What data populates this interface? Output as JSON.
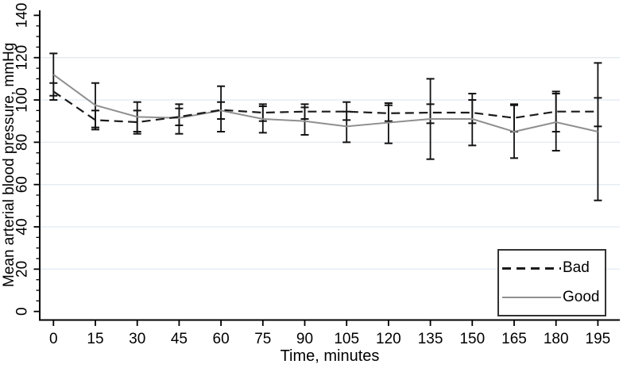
{
  "chart_data": {
    "type": "line",
    "title": "",
    "xlabel": "Time, minutes",
    "ylabel": "Mean arterial blood pressure, mmHg",
    "x": [
      0,
      15,
      30,
      45,
      60,
      75,
      90,
      105,
      120,
      135,
      150,
      165,
      180,
      195
    ],
    "ylim": [
      0,
      140
    ],
    "yticks": [
      0,
      20,
      40,
      60,
      80,
      100,
      120,
      140
    ],
    "y_minor_tick_step": 5,
    "gridline_values": [
      20,
      40,
      60,
      80,
      100,
      120
    ],
    "grid": "horizontal-light",
    "legend_position": "bottom-right",
    "error_bars": true,
    "series": [
      {
        "name": "Bad",
        "line_style": "dashed",
        "color": "#1a1a1a",
        "values": [
          104,
          90.5,
          89.5,
          92,
          95.3,
          94,
          94.5,
          94.5,
          93.7,
          94,
          94,
          91.5,
          94.5,
          94.5
        ],
        "err_low": [
          100,
          86,
          84,
          88,
          91,
          90,
          91,
          90.5,
          90,
          89,
          89,
          85,
          85,
          87.5
        ],
        "err_high": [
          108,
          95,
          95,
          96,
          99,
          98,
          98,
          99,
          97.5,
          98,
          100,
          98,
          104,
          101
        ]
      },
      {
        "name": "Good",
        "line_style": "solid",
        "color": "#8f8f8f",
        "values": [
          112,
          97.5,
          92,
          91.5,
          95,
          91,
          90,
          87.5,
          89.3,
          91,
          91,
          85,
          89.5,
          85
        ],
        "err_low": [
          102,
          87,
          85,
          84,
          85,
          84.5,
          83.5,
          80,
          79.5,
          72,
          78.5,
          72.5,
          76,
          52.5
        ],
        "err_high": [
          122,
          108,
          99,
          98,
          106.5,
          97,
          96.5,
          94.5,
          98.5,
          110,
          103,
          97.5,
          103,
          117.5
        ]
      }
    ],
    "error_bar_color": "#111111",
    "gridline_color": "#e2ebf2",
    "axis_color": "#000000",
    "background_color": "#ffffff"
  }
}
